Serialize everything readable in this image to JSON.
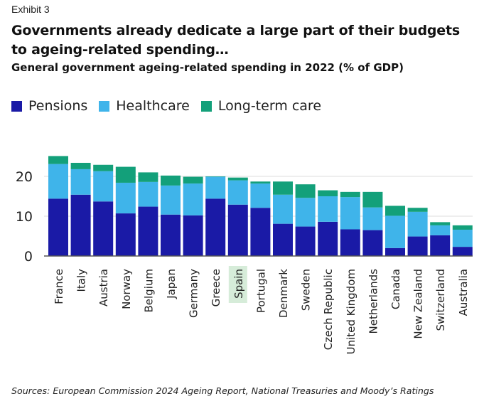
{
  "header": {
    "exhibit": "Exhibit 3",
    "title": "Governments already dedicate a large part of their budgets to ageing-related spending…",
    "subtitle": "General government ageing-related spending in 2022 (% of GDP)"
  },
  "footer": {
    "source": "Sources: European Commission 2024 Ageing Report, National Treasuries and Moody’s Ratings"
  },
  "colors": {
    "pensions": "#1a1aa6",
    "healthcare": "#3fb4ea",
    "long_term_care": "#13a07a",
    "highlight_bg": "#d6ecd9",
    "grid": "#dddddd"
  },
  "chart_data": {
    "type": "bar",
    "stacked": true,
    "categories": [
      "France",
      "Italy",
      "Austria",
      "Norway",
      "Belgium",
      "Japan",
      "Germany",
      "Greece",
      "Spain",
      "Portugal",
      "Denmark",
      "Sweden",
      "Czech Republic",
      "United Kingdom",
      "Netherlands",
      "Canada",
      "New Zealand",
      "Switzerland",
      "Australia"
    ],
    "highlighted_category": "Spain",
    "series": [
      {
        "name": "Pensions",
        "color": "#1a1aa6",
        "values": [
          14.4,
          15.4,
          13.7,
          10.7,
          12.4,
          10.4,
          10.2,
          14.4,
          12.9,
          12.1,
          8.1,
          7.4,
          8.6,
          6.7,
          6.5,
          2.0,
          4.9,
          5.2,
          2.3
        ]
      },
      {
        "name": "Healthcare",
        "color": "#3fb4ea",
        "values": [
          8.7,
          6.4,
          7.6,
          7.7,
          6.2,
          7.3,
          8.0,
          5.5,
          6.1,
          6.1,
          7.3,
          7.2,
          6.4,
          8.1,
          5.7,
          8.1,
          6.2,
          2.5,
          4.3
        ]
      },
      {
        "name": "Long-term care",
        "color": "#13a07a",
        "values": [
          2.0,
          1.6,
          1.6,
          4.0,
          2.4,
          2.5,
          1.7,
          0.1,
          0.7,
          0.5,
          3.3,
          3.4,
          1.5,
          1.3,
          3.9,
          2.5,
          1.0,
          0.8,
          1.1
        ]
      }
    ],
    "ylim": [
      0,
      27
    ],
    "yticks": [
      0,
      10,
      20
    ],
    "grid": true,
    "legend": "top-left",
    "xlabel": "",
    "ylabel": ""
  }
}
